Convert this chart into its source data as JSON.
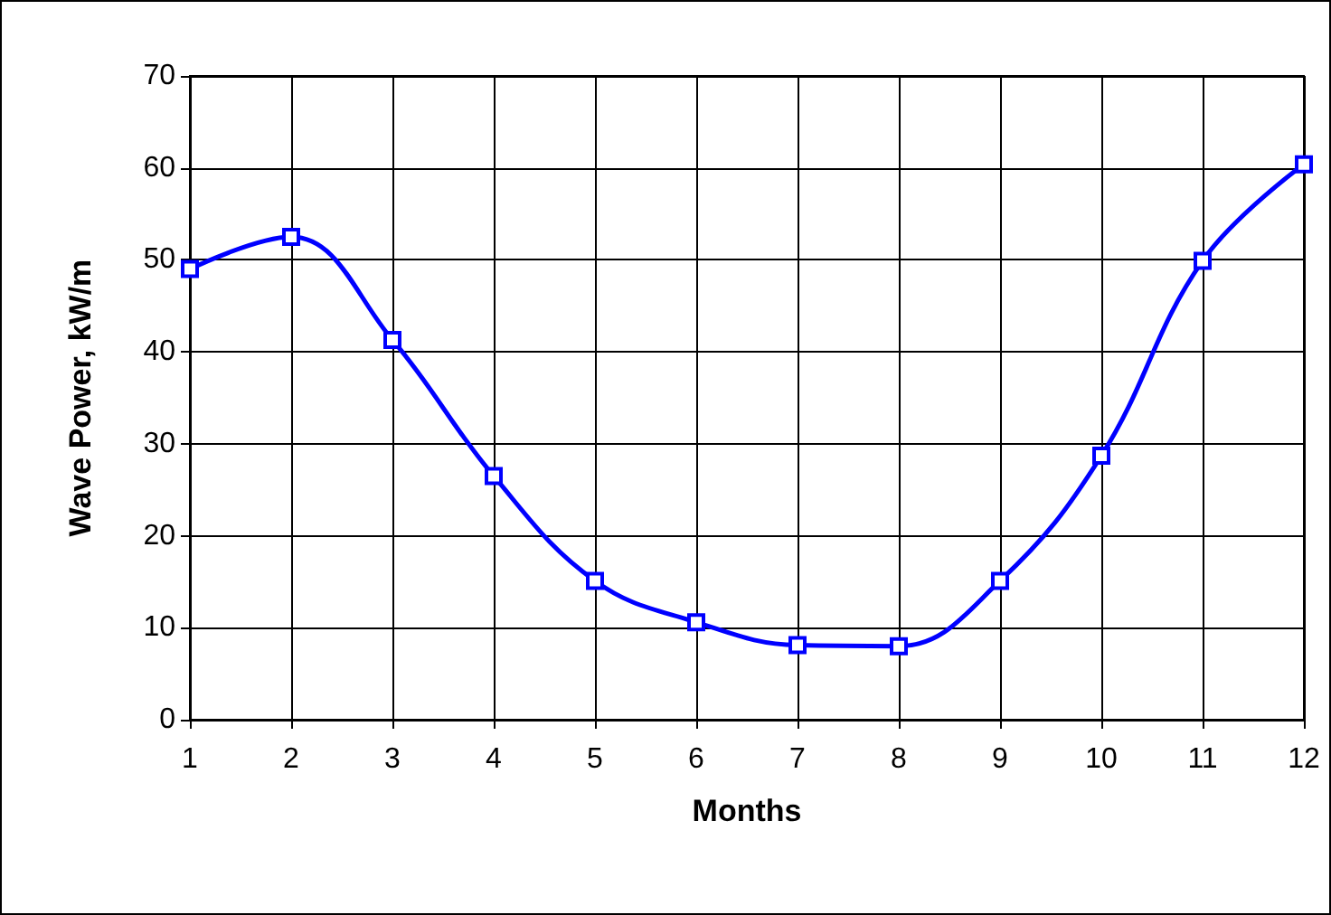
{
  "chart_data": {
    "type": "line",
    "xlabel": "Months",
    "ylabel": "Wave Power, kW/m",
    "x": [
      1,
      2,
      3,
      4,
      5,
      6,
      7,
      8,
      9,
      10,
      11,
      12
    ],
    "series": [
      {
        "color": "#0000ff",
        "values": [
          49,
          52.5,
          41.3,
          26.5,
          15.1,
          10.6,
          8.1,
          8,
          15.1,
          28.7,
          49.9,
          60.4
        ]
      }
    ],
    "xlim": [
      1,
      12
    ],
    "xticks": [
      1,
      2,
      3,
      4,
      5,
      6,
      7,
      8,
      9,
      10,
      11,
      12
    ],
    "ylim": [
      0,
      70
    ],
    "yticks": [
      0,
      10,
      20,
      30,
      40,
      50,
      60,
      70
    ],
    "grid": true,
    "marker": "square",
    "line_style": "solid"
  }
}
